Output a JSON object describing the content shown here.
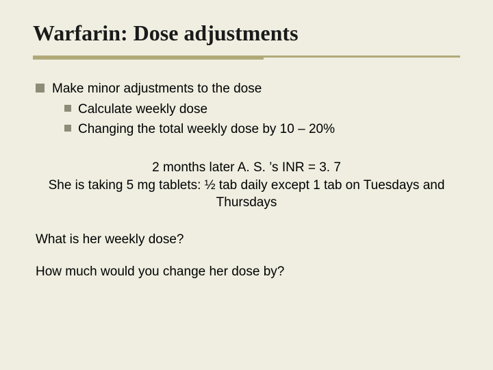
{
  "title": "Warfarin: Dose adjustments",
  "bullets": {
    "b1": "Make minor adjustments to the dose",
    "b1a": "Calculate weekly dose",
    "b1b": "Changing the total weekly dose by 10 – 20%"
  },
  "case": {
    "line1": "2 months later A. S. ’s INR = 3. 7",
    "line2": "She is taking 5 mg tablets: ½ tab daily except 1 tab on Tuesdays and Thursdays"
  },
  "questions": {
    "q1": "What is her weekly dose?",
    "q2": "How much would you change her dose by?"
  },
  "colors": {
    "background": "#efeee1",
    "rule": "#b1a978",
    "bullet_square": "#8c8c78",
    "text": "#000000"
  },
  "fonts": {
    "title_family": "Times New Roman",
    "title_size_pt": 32,
    "body_family": "Arial",
    "body_size_pt": 19
  }
}
